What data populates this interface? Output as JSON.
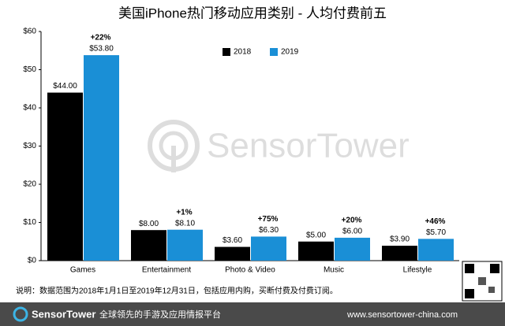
{
  "chart_data": {
    "type": "bar",
    "title": "美国iPhone热门移动应用类别 - 人均付费前五",
    "categories": [
      "Games",
      "Entertainment",
      "Photo & Video",
      "Music",
      "Lifestyle"
    ],
    "series": [
      {
        "name": "2018",
        "color": "#000000",
        "values": [
          44.0,
          8.0,
          3.6,
          5.0,
          3.9
        ],
        "value_labels": [
          "$44.00",
          "$8.00",
          "$3.60",
          "$5.00",
          "$3.90"
        ]
      },
      {
        "name": "2019",
        "color": "#1a8fd6",
        "values": [
          53.8,
          8.1,
          6.3,
          6.0,
          5.7
        ],
        "value_labels": [
          "$53.80",
          "$8.10",
          "$6.30",
          "$6.00",
          "$5.70"
        ]
      }
    ],
    "change_labels": [
      "+22%",
      "+1%",
      "+75%",
      "+20%",
      "+46%"
    ],
    "ylim": [
      0,
      60
    ],
    "yticks": [
      {
        "value": 0,
        "label": "$0"
      },
      {
        "value": 10,
        "label": "$10"
      },
      {
        "value": 20,
        "label": "$20"
      },
      {
        "value": 30,
        "label": "$30"
      },
      {
        "value": 40,
        "label": "$40"
      },
      {
        "value": 50,
        "label": "$50"
      },
      {
        "value": 60,
        "label": "$60"
      }
    ],
    "grid": false,
    "note": "说明：数据范围为2018年1月1日至2019年12月31日，包括应用内购，买断付费及付费订阅。",
    "watermark": "SensorTower",
    "footer": {
      "brand": "SensorTower",
      "slogan": "全球领先的手游及应用情报平台",
      "url": "www.sensortower-china.com"
    }
  }
}
